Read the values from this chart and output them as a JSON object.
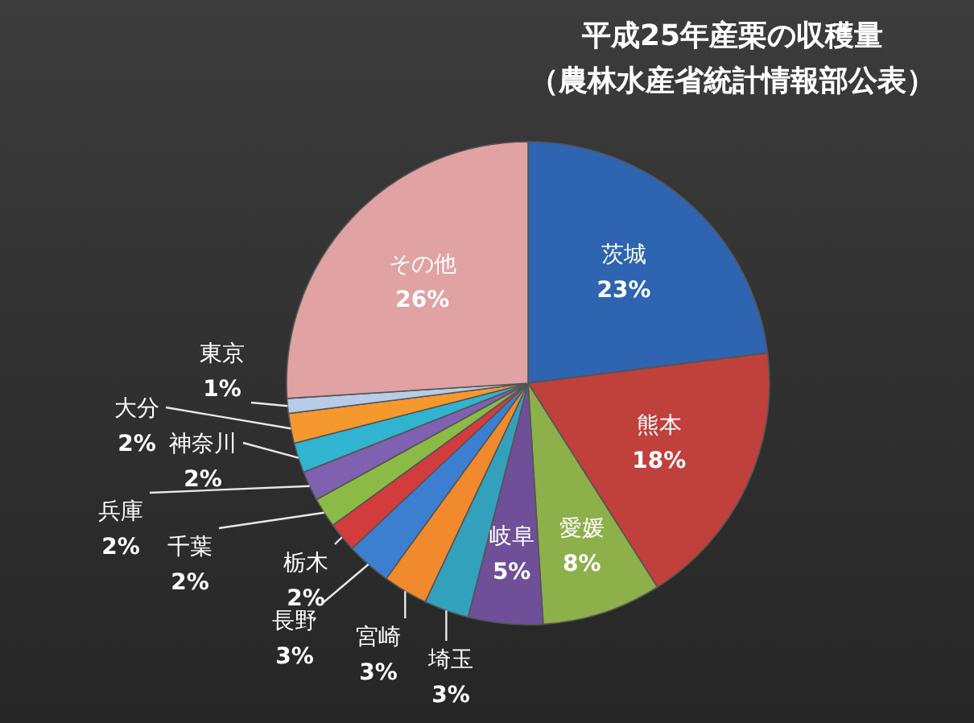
{
  "chart_data": {
    "type": "pie",
    "title": "平成25年産栗の収穫量",
    "subtitle": "（農林水産省統計情報部公表）",
    "categories": [
      "茨城",
      "熊本",
      "愛媛",
      "岐阜",
      "埼玉",
      "宮崎",
      "長野",
      "栃木",
      "千葉",
      "兵庫",
      "神奈川",
      "大分",
      "東京",
      "その他"
    ],
    "values": [
      23,
      18,
      8,
      5,
      3,
      3,
      3,
      2,
      2,
      2,
      2,
      2,
      1,
      26
    ],
    "colors": [
      "#2e64b0",
      "#c0403c",
      "#8db04a",
      "#6e4f98",
      "#33a0bc",
      "#f08a2c",
      "#3c7fd0",
      "#d23c3c",
      "#8cba46",
      "#8060b0",
      "#30b4d0",
      "#f5982e",
      "#b8cce8",
      "#e0a2a2"
    ],
    "value_labels": [
      "23%",
      "18%",
      "8%",
      "5%",
      "3%",
      "3%",
      "3%",
      "2%",
      "2%",
      "2%",
      "2%",
      "2%",
      "1%",
      "26%"
    ],
    "legend": false
  }
}
